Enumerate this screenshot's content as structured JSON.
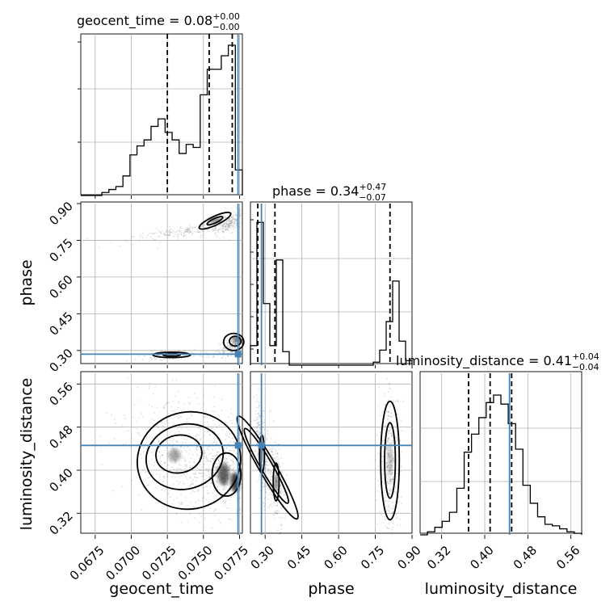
{
  "chart_data": {
    "type": "corner",
    "truth_color": "#4682b4",
    "parameters": [
      {
        "key": "geocent_time",
        "label": "geocent_time",
        "median": "0.08",
        "plus": "+0.00",
        "minus": "−0.00",
        "range": [
          0.0665,
          0.0777
        ],
        "ticks": [
          0.0675,
          0.07,
          0.0725,
          0.075,
          0.0775
        ],
        "tick_labels": [
          "0.0675",
          "0.0700",
          "0.0725",
          "0.0750",
          "0.0775"
        ],
        "quantiles": [
          0.0725,
          0.0754,
          0.077
        ],
        "truth": 0.0774
      },
      {
        "key": "phase",
        "label": "phase",
        "median": "0.34",
        "plus": "+0.47",
        "minus": "−0.07",
        "range": [
          0.24,
          0.9
        ],
        "ticks": [
          0.3,
          0.45,
          0.6,
          0.75,
          0.9
        ],
        "tick_labels": [
          "0.30",
          "0.45",
          "0.60",
          "0.75",
          "0.90"
        ],
        "quantiles": [
          0.27,
          0.34,
          0.81
        ],
        "truth": 0.285
      },
      {
        "key": "luminosity_distance",
        "label": "luminosity_distance",
        "median": "0.41",
        "plus": "+0.04",
        "minus": "−0.04",
        "range": [
          0.28,
          0.58
        ],
        "ticks": [
          0.32,
          0.4,
          0.48,
          0.56
        ],
        "tick_labels": [
          "0.32",
          "0.40",
          "0.48",
          "0.56"
        ],
        "quantiles": [
          0.37,
          0.41,
          0.45
        ],
        "truth": 0.446
      }
    ],
    "histograms": {
      "geocent_time": {
        "counts": [
          0,
          0,
          0,
          0.02,
          0.04,
          0.06,
          0.13,
          0.27,
          0.33,
          0.37,
          0.46,
          0.51,
          0.42,
          0.37,
          0.28,
          0.34,
          0.32,
          0.67,
          0.84,
          0.84,
          0.93,
          1.0,
          0.17
        ]
      },
      "phase": {
        "counts": [
          0.13,
          0.95,
          0.41,
          0.13,
          0.7,
          0.09,
          0,
          0,
          0,
          0,
          0,
          0,
          0,
          0,
          0,
          0,
          0,
          0,
          0,
          0.02,
          0.1,
          0.29,
          0.56,
          0.16,
          0.03
        ]
      },
      "luminosity_distance": {
        "counts": [
          0,
          0.02,
          0.05,
          0.09,
          0.15,
          0.31,
          0.55,
          0.67,
          0.78,
          0.88,
          0.93,
          0.87,
          0.74,
          0.57,
          0.33,
          0.21,
          0.12,
          0.07,
          0.06,
          0.04,
          0.02,
          0.01
        ]
      }
    }
  }
}
